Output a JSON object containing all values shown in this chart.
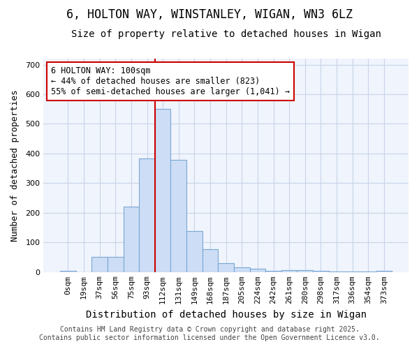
{
  "title1": "6, HOLTON WAY, WINSTANLEY, WIGAN, WN3 6LZ",
  "title2": "Size of property relative to detached houses in Wigan",
  "xlabel": "Distribution of detached houses by size in Wigan",
  "ylabel": "Number of detached properties",
  "bar_labels": [
    "0sqm",
    "19sqm",
    "37sqm",
    "56sqm",
    "75sqm",
    "93sqm",
    "112sqm",
    "131sqm",
    "149sqm",
    "168sqm",
    "187sqm",
    "205sqm",
    "224sqm",
    "242sqm",
    "261sqm",
    "280sqm",
    "298sqm",
    "317sqm",
    "336sqm",
    "354sqm",
    "373sqm"
  ],
  "bar_values": [
    5,
    0,
    52,
    52,
    220,
    383,
    550,
    378,
    138,
    78,
    30,
    16,
    12,
    5,
    7,
    6,
    5,
    1,
    1,
    1,
    5
  ],
  "bar_color": "#ccddf5",
  "bar_edge_color": "#7ba7d4",
  "vline_x_index": 5.5,
  "vline_color": "#cc0000",
  "annotation_text": "6 HOLTON WAY: 100sqm\n← 44% of detached houses are smaller (823)\n55% of semi-detached houses are larger (1,041) →",
  "annotation_box_color": "#ffffff",
  "annotation_box_edge": "#cc0000",
  "ylim": [
    0,
    720
  ],
  "yticks": [
    0,
    100,
    200,
    300,
    400,
    500,
    600,
    700
  ],
  "bg_color": "#ffffff",
  "plot_bg_color": "#f0f4fc",
  "grid_color": "#c8d4e8",
  "footer1": "Contains HM Land Registry data © Crown copyright and database right 2025.",
  "footer2": "Contains public sector information licensed under the Open Government Licence v3.0.",
  "title1_fontsize": 12,
  "title2_fontsize": 10,
  "xlabel_fontsize": 10,
  "ylabel_fontsize": 9,
  "tick_fontsize": 8,
  "annotation_fontsize": 8.5,
  "footer_fontsize": 7
}
